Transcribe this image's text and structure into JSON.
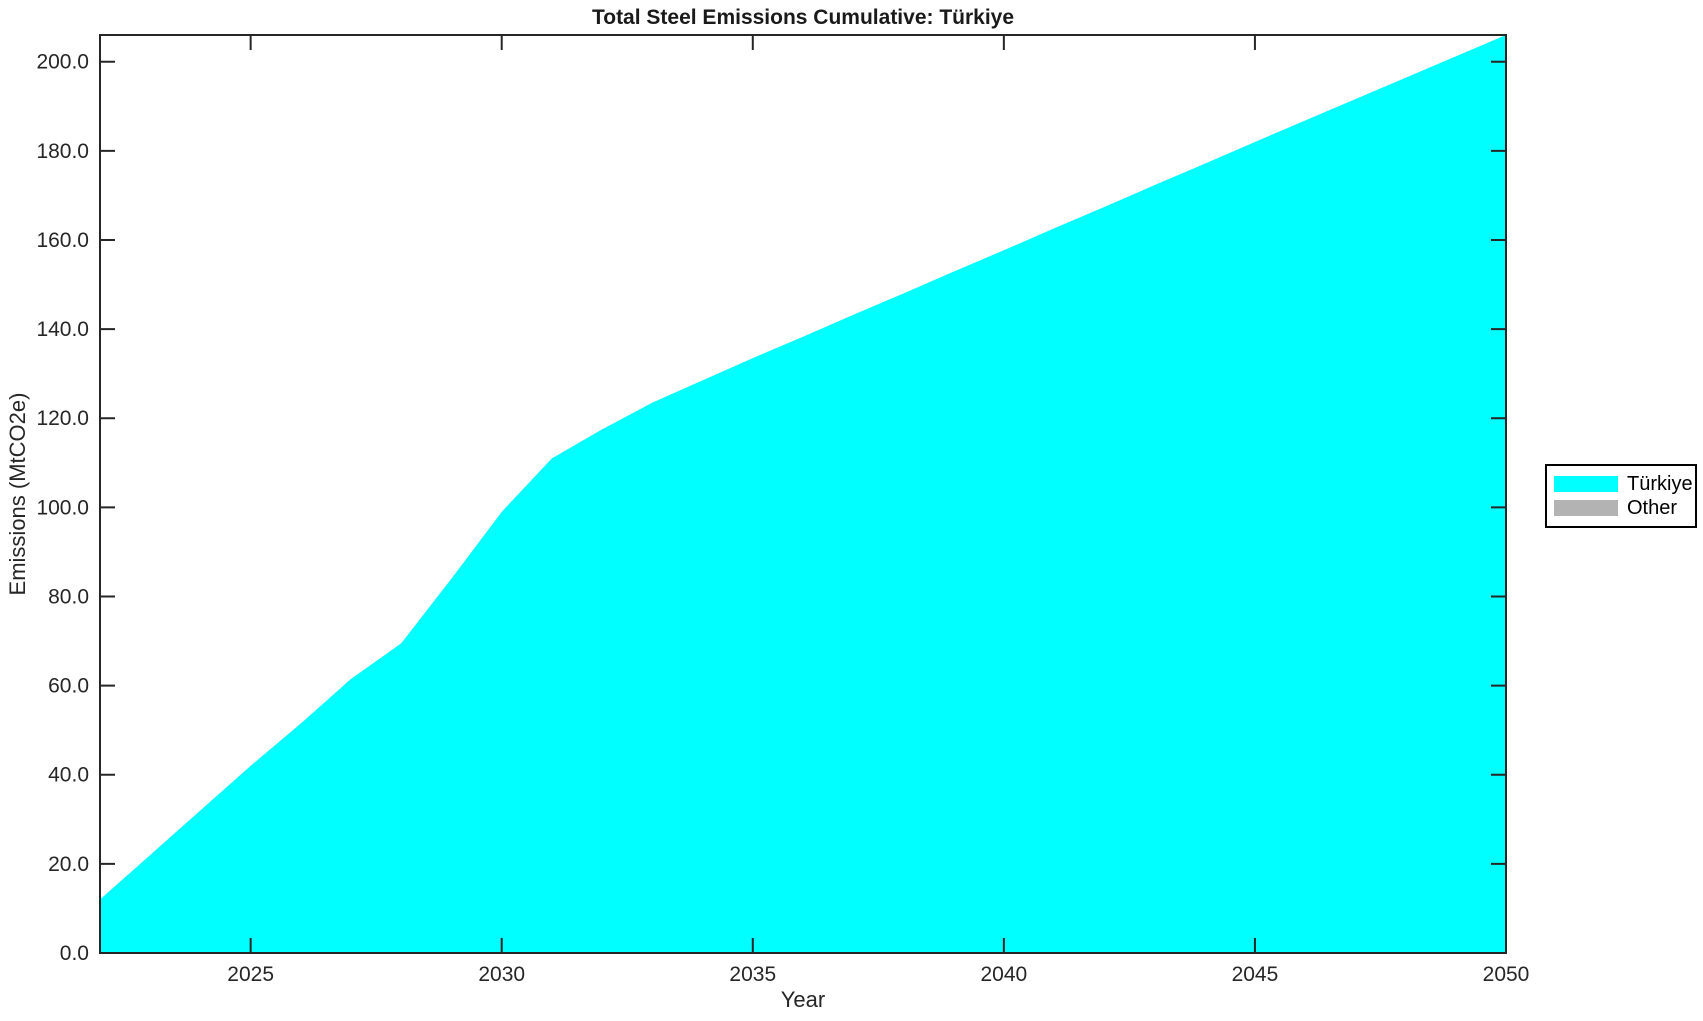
{
  "figure": {
    "title": "Total Steel Emissions Cumulative: Türkiye",
    "x_axis_label": "Year",
    "y_axis_label": "Emissions (MtCO2e)"
  },
  "chart_data": {
    "type": "area",
    "title": "Total Steel Emissions Cumulative: Türkiye",
    "xlabel": "Year",
    "ylabel": "Emissions (MtCO2e)",
    "x": [
      2022,
      2023,
      2024,
      2025,
      2026,
      2027,
      2028,
      2029,
      2030,
      2031,
      2032,
      2033,
      2034,
      2035,
      2036,
      2037,
      2038,
      2039,
      2040,
      2041,
      2042,
      2043,
      2044,
      2045,
      2046,
      2047,
      2048,
      2049,
      2050
    ],
    "series": [
      {
        "name": "Türkiye",
        "color": "#00FFFF",
        "values": [
          12.0,
          22.0,
          32.0,
          42.0,
          51.5,
          61.5,
          69.5,
          84.0,
          99.0,
          111.0,
          117.5,
          123.5,
          128.5,
          133.5,
          138.3,
          143.2,
          148.0,
          152.9,
          157.7,
          162.6,
          167.4,
          172.3,
          177.1,
          182.0,
          186.8,
          191.6,
          196.4,
          201.2,
          206.0
        ]
      },
      {
        "name": "Other",
        "color": "#B3B3B3",
        "values": [],
        "visible_in_plot": false
      }
    ],
    "xlim": [
      2022,
      2050
    ],
    "ylim": [
      0,
      206
    ],
    "xticks": [
      2025,
      2030,
      2035,
      2040,
      2045,
      2050
    ],
    "xtick_labels": [
      "2025",
      "2030",
      "2035",
      "2040",
      "2045",
      "2050"
    ],
    "yticks": [
      0,
      20,
      40,
      60,
      80,
      100,
      120,
      140,
      160,
      180,
      200
    ],
    "ytick_labels": [
      "0.0",
      "20.0",
      "40.0",
      "60.0",
      "80.0",
      "100.0",
      "120.0",
      "140.0",
      "160.0",
      "180.0",
      "200.0"
    ],
    "grid": false,
    "legend_position": "right-outside",
    "axis_color": "#262626",
    "background_color": "#FFFFFF"
  }
}
